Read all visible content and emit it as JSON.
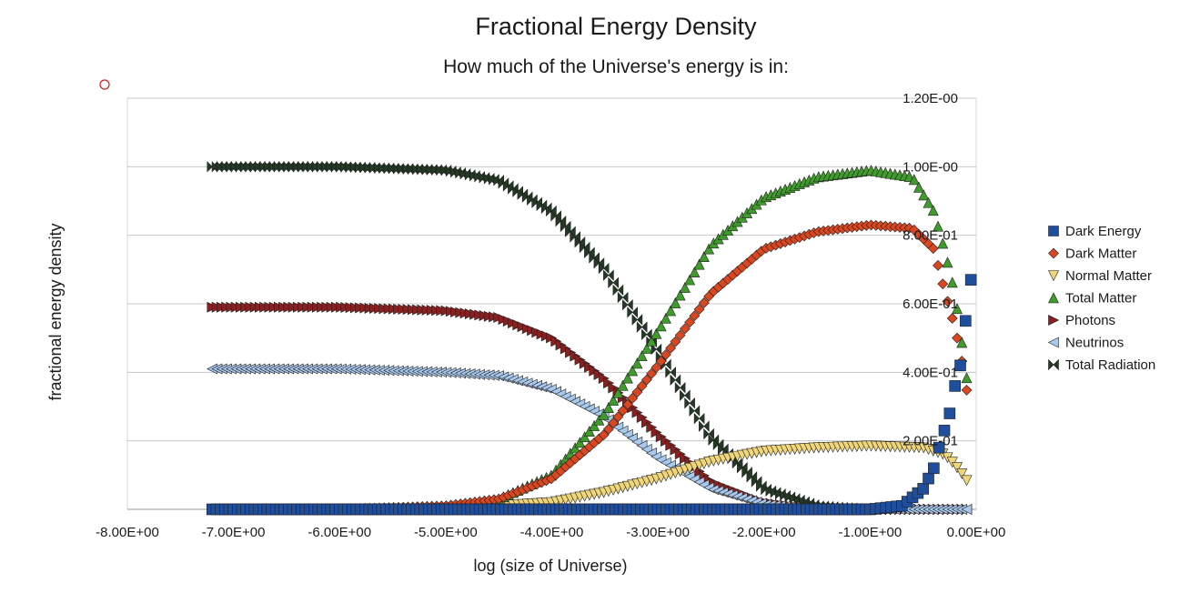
{
  "chart_data": {
    "type": "scatter",
    "title": "Fractional Energy Density",
    "subtitle": "How much of the Universe's energy is in:",
    "xlabel": "log (size of Universe)",
    "ylabel": "fractional energy density",
    "xlim": [
      -8,
      0
    ],
    "ylim": [
      0,
      1.2
    ],
    "x_ticks": [
      -8,
      -7,
      -6,
      -5,
      -4,
      -3,
      -2,
      -1,
      0
    ],
    "x_tick_labels": [
      "-8.00E+00",
      "-7.00E+00",
      "-6.00E+00",
      "-5.00E+00",
      "-4.00E+00",
      "-3.00E+00",
      "-2.00E+00",
      "-1.00E+00",
      "0.00E+00"
    ],
    "y_ticks": [
      0.2,
      0.4,
      0.6,
      0.8,
      1.0,
      1.2
    ],
    "y_tick_labels": [
      "2.00E-01",
      "4.00E-01",
      "6.00E-01",
      "8.00E-01",
      "1.00E-00",
      "1.20E-00"
    ],
    "grid": true,
    "legend_position": "right",
    "series": [
      {
        "name": "Dark Energy",
        "marker": "square",
        "color": "#1f4e9c",
        "x": [
          -7.2,
          -6.0,
          -5.0,
          -4.0,
          -3.0,
          -2.0,
          -1.0,
          -0.7,
          -0.5,
          -0.4,
          -0.35,
          -0.3,
          -0.25,
          -0.2,
          -0.15,
          -0.1,
          -0.05
        ],
        "y": [
          0.0,
          0.0,
          0.0,
          0.0,
          0.0,
          0.0,
          0.0,
          0.01,
          0.06,
          0.12,
          0.18,
          0.23,
          0.28,
          0.36,
          0.42,
          0.55,
          0.67
        ]
      },
      {
        "name": "Dark Matter",
        "marker": "diamond",
        "color": "#d9461f",
        "x": [
          -7.2,
          -6.0,
          -5.0,
          -4.5,
          -4.0,
          -3.5,
          -3.0,
          -2.5,
          -2.0,
          -1.5,
          -1.0,
          -0.6,
          -0.4,
          -0.3,
          -0.2,
          -0.1,
          -0.05
        ],
        "y": [
          0.0,
          0.0,
          0.01,
          0.03,
          0.09,
          0.22,
          0.42,
          0.63,
          0.76,
          0.81,
          0.83,
          0.82,
          0.76,
          0.64,
          0.53,
          0.38,
          0.22
        ]
      },
      {
        "name": "Normal Matter",
        "marker": "triangle-down",
        "color": "#f0d67a",
        "x": [
          -7.2,
          -6.0,
          -5.0,
          -4.5,
          -4.0,
          -3.5,
          -3.0,
          -2.5,
          -2.0,
          -1.5,
          -1.0,
          -0.5,
          -0.3,
          -0.2,
          -0.1,
          -0.05
        ],
        "y": [
          0.0,
          0.0,
          0.0,
          0.01,
          0.02,
          0.05,
          0.09,
          0.14,
          0.17,
          0.18,
          0.185,
          0.18,
          0.16,
          0.13,
          0.09,
          0.06
        ]
      },
      {
        "name": "Total Matter",
        "marker": "triangle-up",
        "color": "#3f9c2c",
        "x": [
          -7.2,
          -6.0,
          -5.0,
          -4.5,
          -4.0,
          -3.5,
          -3.0,
          -2.5,
          -2.0,
          -1.5,
          -1.0,
          -0.6,
          -0.4,
          -0.3,
          -0.2,
          -0.1,
          -0.05
        ],
        "y": [
          0.0,
          0.0,
          0.01,
          0.03,
          0.1,
          0.28,
          0.52,
          0.77,
          0.91,
          0.97,
          0.99,
          0.97,
          0.87,
          0.76,
          0.63,
          0.41,
          0.28
        ]
      },
      {
        "name": "Photons",
        "marker": "triangle-right",
        "color": "#8a1f1f",
        "x": [
          -7.2,
          -6.0,
          -5.0,
          -4.5,
          -4.0,
          -3.5,
          -3.0,
          -2.5,
          -2.0,
          -1.5,
          -1.0,
          -0.5,
          -0.05
        ],
        "y": [
          0.59,
          0.59,
          0.58,
          0.56,
          0.5,
          0.38,
          0.22,
          0.08,
          0.02,
          0.0,
          0.0,
          0.0,
          0.0
        ]
      },
      {
        "name": "Neutrinos",
        "marker": "triangle-left",
        "color": "#a8c8ec",
        "x": [
          -7.2,
          -6.0,
          -5.0,
          -4.5,
          -4.0,
          -3.5,
          -3.0,
          -2.5,
          -2.0,
          -1.5,
          -1.0,
          -0.5,
          -0.05
        ],
        "y": [
          0.41,
          0.41,
          0.4,
          0.39,
          0.35,
          0.27,
          0.15,
          0.06,
          0.015,
          0.0,
          0.0,
          0.0,
          0.0
        ]
      },
      {
        "name": "Total Radiation",
        "marker": "bowtie",
        "color": "#243a24",
        "x": [
          -7.2,
          -6.0,
          -5.0,
          -4.5,
          -4.0,
          -3.5,
          -3.0,
          -2.5,
          -2.0,
          -1.5,
          -1.0,
          -0.5,
          -0.05
        ],
        "y": [
          1.0,
          1.0,
          0.99,
          0.96,
          0.87,
          0.7,
          0.46,
          0.21,
          0.06,
          0.01,
          0.0,
          0.0,
          0.0
        ]
      }
    ]
  }
}
